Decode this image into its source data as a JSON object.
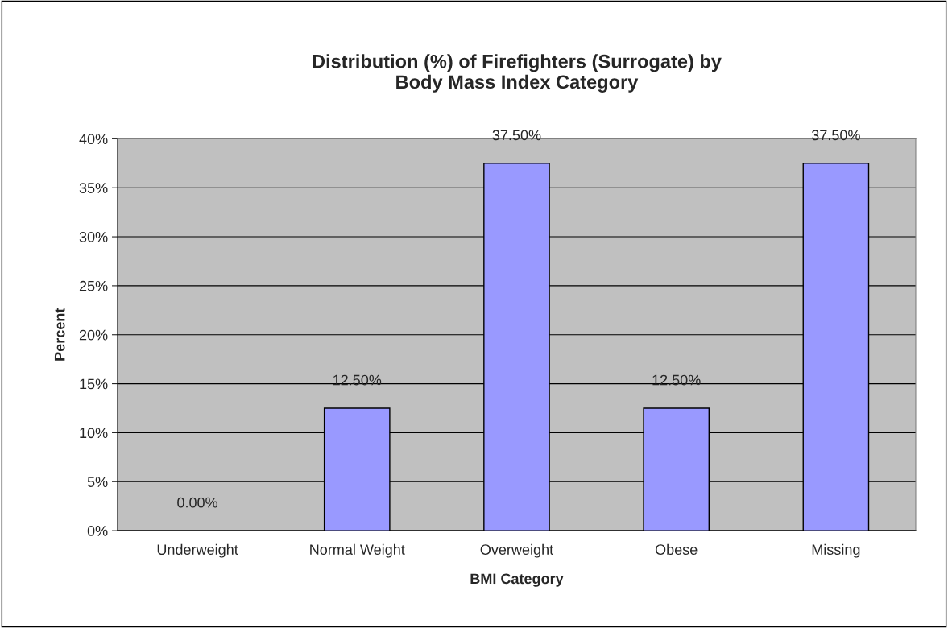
{
  "chart_data": {
    "type": "bar",
    "title": "Distribution (%) of Firefighters (Surrogate) by\nBody Mass Index Category",
    "xlabel": "BMI Category",
    "ylabel": "Percent",
    "categories": [
      "Underweight",
      "Normal Weight",
      "Overweight",
      "Obese",
      "Missing"
    ],
    "values": [
      0,
      12.5,
      37.5,
      12.5,
      37.5
    ],
    "color": "#9999ff",
    "value_labels": [
      "0.00%",
      "12.50%",
      "37.50%",
      "12.50%",
      "37.50%"
    ],
    "ylim": [
      0,
      40
    ],
    "yticks": [
      {
        "value": 0,
        "label": "0%"
      },
      {
        "value": 5,
        "label": "5%"
      },
      {
        "value": 10,
        "label": "10%"
      },
      {
        "value": 15,
        "label": "15%"
      },
      {
        "value": 20,
        "label": "20%"
      },
      {
        "value": 25,
        "label": "25%"
      },
      {
        "value": 30,
        "label": "30%"
      },
      {
        "value": 35,
        "label": "35%"
      },
      {
        "value": 40,
        "label": "40%"
      }
    ],
    "grid": "y",
    "legend": false
  }
}
